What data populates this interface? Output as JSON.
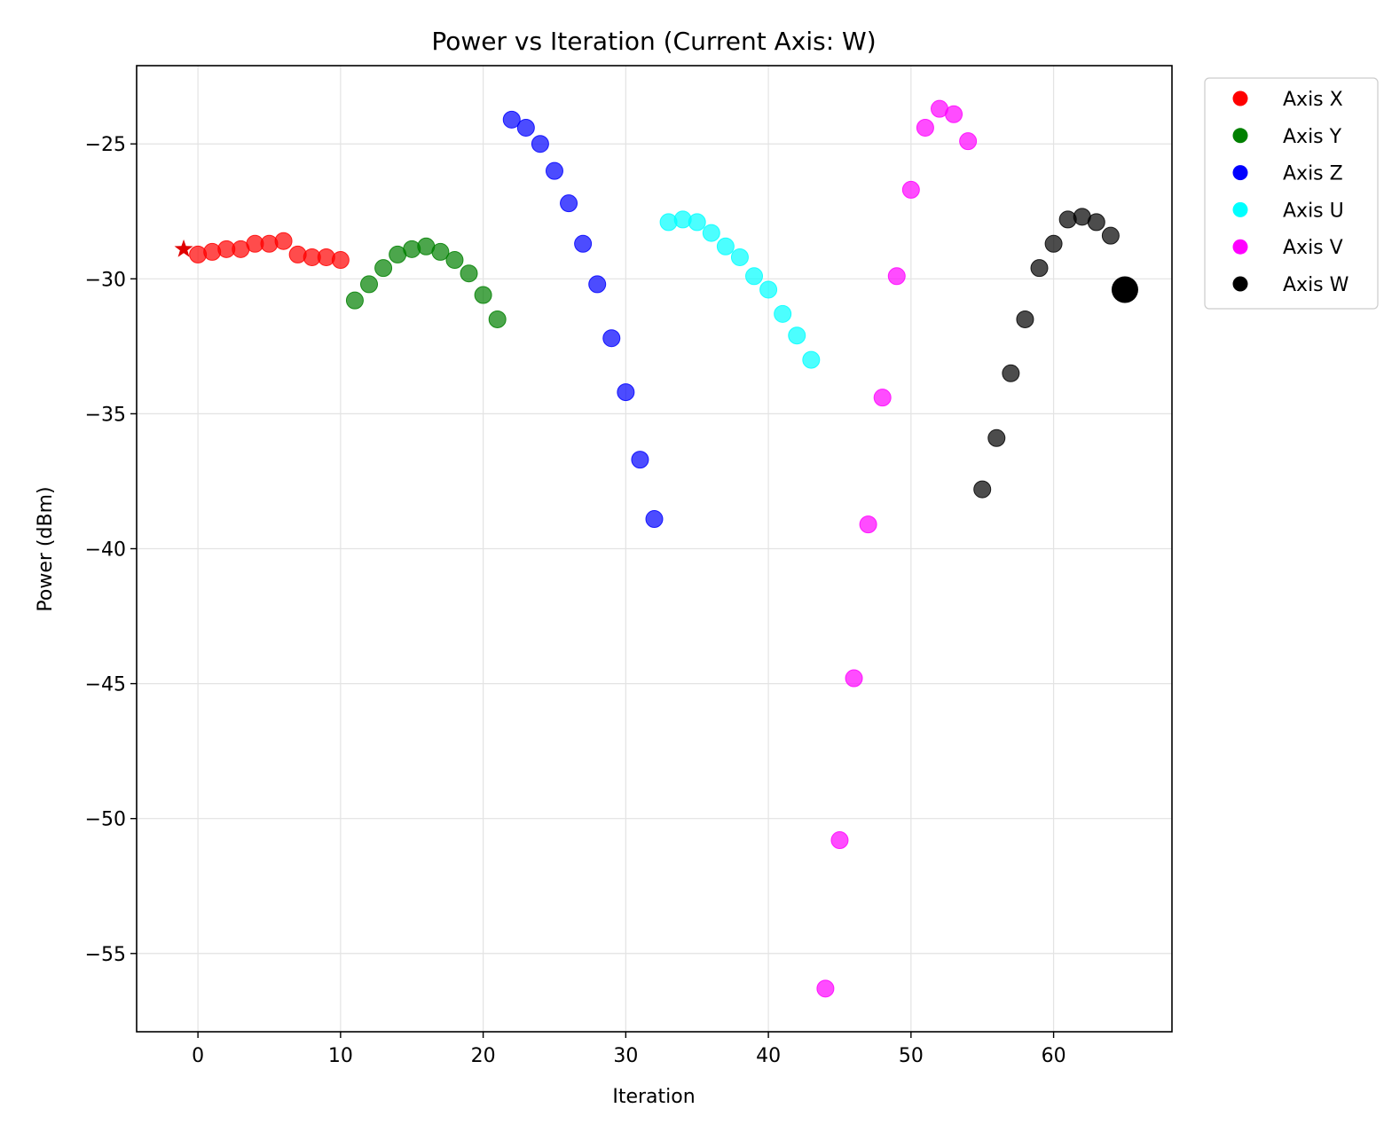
{
  "chart_data": {
    "type": "scatter",
    "title": "Power vs Iteration (Current Axis: W)",
    "xlabel": "Iteration",
    "ylabel": "Power (dBm)",
    "xlim": [
      -4.3,
      68.3
    ],
    "ylim": [
      -57.9,
      -22.1
    ],
    "xticks": [
      0,
      10,
      20,
      30,
      40,
      50,
      60
    ],
    "yticks": [
      -25,
      -30,
      -35,
      -40,
      -45,
      -50,
      -55
    ],
    "xtick_labels": [
      "0",
      "10",
      "20",
      "30",
      "40",
      "50",
      "60"
    ],
    "ytick_labels": [
      "−25",
      "−30",
      "−35",
      "−40",
      "−45",
      "−50",
      "−55"
    ],
    "grid": true,
    "legend_position": "outside-top-right",
    "start_marker": {
      "x": -1,
      "y": -28.9,
      "color": "#e00000",
      "shape": "star"
    },
    "current_marker": {
      "x": 65,
      "y": -30.4,
      "color": "#000000"
    },
    "series": [
      {
        "name": "Axis X",
        "color": "#ff0000",
        "x": [
          0,
          1,
          2,
          3,
          4,
          5,
          6,
          7,
          8,
          9,
          10
        ],
        "y": [
          -29.1,
          -29.0,
          -28.9,
          -28.9,
          -28.7,
          -28.7,
          -28.6,
          -29.1,
          -29.2,
          -29.2,
          -29.3
        ]
      },
      {
        "name": "Axis Y",
        "color": "#008000",
        "x": [
          11,
          12,
          13,
          14,
          15,
          16,
          17,
          18,
          19,
          20,
          21
        ],
        "y": [
          -30.8,
          -30.2,
          -29.6,
          -29.1,
          -28.9,
          -28.8,
          -29.0,
          -29.3,
          -29.8,
          -30.6,
          -31.5
        ]
      },
      {
        "name": "Axis Z",
        "color": "#0000ff",
        "x": [
          22,
          23,
          24,
          25,
          26,
          27,
          28,
          29,
          30,
          31,
          32
        ],
        "y": [
          -24.1,
          -24.4,
          -25.0,
          -26.0,
          -27.2,
          -28.7,
          -30.2,
          -32.2,
          -34.2,
          -36.7,
          -38.9
        ]
      },
      {
        "name": "Axis U",
        "color": "#00ffff",
        "x": [
          33,
          34,
          35,
          36,
          37,
          38,
          39,
          40,
          41,
          42,
          43
        ],
        "y": [
          -27.9,
          -27.8,
          -27.9,
          -28.3,
          -28.8,
          -29.2,
          -29.9,
          -30.4,
          -31.3,
          -32.1,
          -33.0
        ]
      },
      {
        "name": "Axis V",
        "color": "#ff00ff",
        "x": [
          44,
          45,
          46,
          47,
          48,
          49,
          50,
          51,
          52,
          53,
          54
        ],
        "y": [
          -56.3,
          -50.8,
          -44.8,
          -39.1,
          -34.4,
          -29.9,
          -26.7,
          -24.4,
          -23.7,
          -23.9,
          -24.9
        ]
      },
      {
        "name": "Axis W",
        "color": "#000000",
        "x": [
          55,
          56,
          57,
          58,
          59,
          60,
          61,
          62,
          63,
          64
        ],
        "y": [
          -37.8,
          -35.9,
          -33.5,
          -31.5,
          -29.6,
          -28.7,
          -27.8,
          -27.7,
          -27.9,
          -28.4
        ]
      }
    ]
  }
}
